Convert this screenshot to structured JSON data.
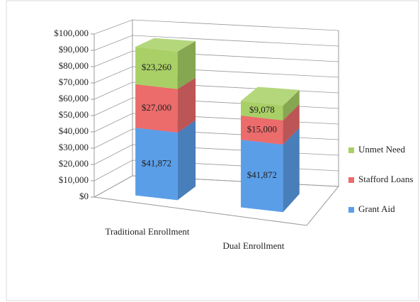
{
  "chart_data": {
    "type": "bar3d_stacked",
    "categories": [
      "Traditional Enrollment",
      "Dual Enrollment"
    ],
    "series": [
      {
        "name": "Grant Aid",
        "color": "#5b9ee8",
        "values": [
          41872,
          41872
        ],
        "value_labels": [
          "$41,872",
          "$41,872"
        ]
      },
      {
        "name": "Stafford Loans",
        "color": "#ec6b6b",
        "values": [
          27000,
          15000
        ],
        "value_labels": [
          "$27,000",
          "$15,000"
        ]
      },
      {
        "name": "Unmet Need",
        "color": "#a9d066",
        "values": [
          23260,
          9078
        ],
        "value_labels": [
          "$23,260",
          "$9,078"
        ]
      }
    ],
    "ylim": [
      0,
      100000
    ],
    "yticks": [
      {
        "value": 0,
        "label": "$0"
      },
      {
        "value": 10000,
        "label": "$10,000"
      },
      {
        "value": 20000,
        "label": "$20,000"
      },
      {
        "value": 30000,
        "label": "$30,000"
      },
      {
        "value": 40000,
        "label": "$40,000"
      },
      {
        "value": 50000,
        "label": "$50,000"
      },
      {
        "value": 60000,
        "label": "$60,000"
      },
      {
        "value": 70000,
        "label": "$70,000"
      },
      {
        "value": 80000,
        "label": "$80,000"
      },
      {
        "value": 90000,
        "label": "$90,000"
      },
      {
        "value": 100000,
        "label": "$100,000"
      }
    ],
    "grid": true,
    "legend": "right"
  }
}
